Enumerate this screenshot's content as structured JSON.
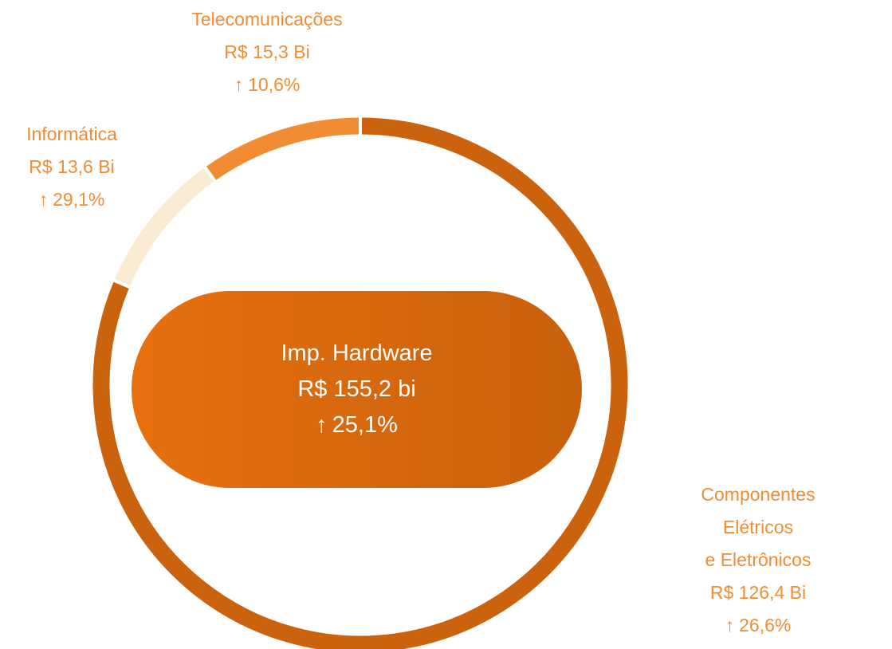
{
  "chart_data": {
    "type": "donut",
    "categories": [
      "Componentes Elétricos\ne Eletrônicos",
      "Informática",
      "Telecomunicações"
    ],
    "values": [
      126.4,
      13.6,
      15.3
    ],
    "value_labels": [
      "R$ 126,4 Bi",
      "R$ 13,6 Bi",
      "R$ 15,3 Bi"
    ],
    "growth": [
      26.6,
      29.1,
      10.6
    ],
    "growth_labels": [
      "26,6%",
      "29,1%",
      "10,6%"
    ],
    "colors": [
      "#cb620d",
      "#fbebd3",
      "#f28c33"
    ],
    "center": {
      "label": "Imp. Hardware",
      "value": 155.2,
      "value_label": "R$ 155,2 bi",
      "growth": 25.1,
      "growth_label": "25,1%"
    }
  }
}
